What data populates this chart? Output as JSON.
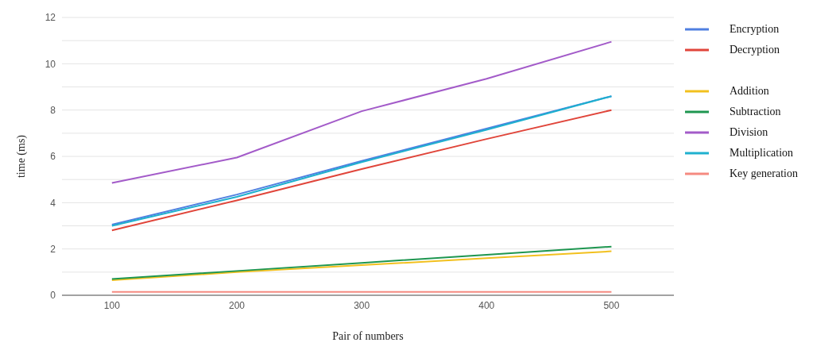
{
  "chart_data": {
    "type": "line",
    "xlabel": "Pair of numbers",
    "ylabel": "time (ms)",
    "x": [
      100,
      200,
      300,
      400,
      500
    ],
    "xlim": [
      60,
      550
    ],
    "xticks": [
      100,
      200,
      300,
      400,
      500
    ],
    "ylim": [
      0,
      12
    ],
    "yticks": [
      0,
      {
        "value": 1,
        "label": null
      },
      2,
      {
        "value": 3,
        "label": null
      },
      4,
      {
        "value": 5,
        "label": null
      },
      6,
      {
        "value": 7,
        "label": null
      },
      8,
      {
        "value": 9,
        "label": null
      },
      10,
      {
        "value": 11,
        "label": null
      },
      12
    ],
    "grid": "y",
    "legend": "right",
    "marker": "none",
    "line_style": "solid",
    "series": [
      {
        "name": "Encryption",
        "color": "#4f7fe0",
        "values": [
          3.05,
          4.35,
          5.8,
          7.2,
          8.6
        ]
      },
      {
        "name": "Decryption",
        "color": "#e0453a",
        "values": [
          2.8,
          4.1,
          5.45,
          6.75,
          8.0
        ]
      },
      {
        "name": "Addition",
        "color": "#f2c01e",
        "values": [
          0.65,
          1.0,
          1.3,
          1.6,
          1.9
        ]
      },
      {
        "name": "Subtraction",
        "color": "#1e9650",
        "values": [
          0.7,
          1.05,
          1.4,
          1.75,
          2.1
        ]
      },
      {
        "name": "Division",
        "color": "#a35bc9",
        "values": [
          4.85,
          5.95,
          7.95,
          9.35,
          10.95
        ]
      },
      {
        "name": "Multiplication",
        "color": "#1fb0cf",
        "values": [
          3.0,
          4.25,
          5.75,
          7.15,
          8.6
        ]
      },
      {
        "name": "Key generation",
        "color": "#f58a80",
        "values": [
          0.15,
          0.15,
          0.15,
          0.15,
          0.15
        ]
      }
    ]
  }
}
